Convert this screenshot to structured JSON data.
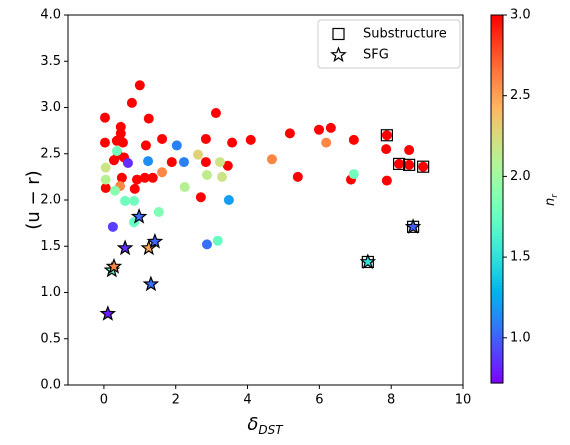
{
  "chart_data": {
    "type": "scatter",
    "xlabel": {
      "text": "δ",
      "sub": "DST"
    },
    "ylabel": "(u − r)",
    "colorbar_label": {
      "text": "n",
      "sub": "r"
    },
    "cmap": "rainbow",
    "clim": [
      0.72,
      3.0
    ],
    "cticks": [
      {
        "value": 1.0,
        "label": "1.0"
      },
      {
        "value": 1.5,
        "label": "1.5"
      },
      {
        "value": 2.0,
        "label": "2.0"
      },
      {
        "value": 2.5,
        "label": "2.5"
      },
      {
        "value": 3.0,
        "label": "3.0"
      }
    ],
    "xlim": [
      -1,
      10
    ],
    "xticks": [
      0,
      2,
      4,
      6,
      8,
      10
    ],
    "ylim": [
      0,
      4
    ],
    "yticks": [
      {
        "value": 0,
        "label": "0.0"
      },
      {
        "value": 0.5,
        "label": "0.5"
      },
      {
        "value": 1,
        "label": "1.0"
      },
      {
        "value": 1.5,
        "label": "1.5"
      },
      {
        "value": 2,
        "label": "2.0"
      },
      {
        "value": 2.5,
        "label": "2.5"
      },
      {
        "value": 3,
        "label": "3.0"
      },
      {
        "value": 3.5,
        "label": "3.5"
      },
      {
        "value": 4,
        "label": "4.0"
      }
    ],
    "legend": "upper right",
    "points": {
      "x": [
        0.03,
        0.03,
        0.05,
        0.28,
        0.39,
        0.45,
        0.47,
        0.47,
        0.36,
        0.53,
        0.5,
        0.56,
        0.78,
        0.86,
        0.92,
        1.0,
        1.14,
        1.17,
        1.25,
        1.36,
        1.62,
        1.89,
        2.84,
        2.84,
        2.7,
        3.12,
        3.45,
        3.57,
        4.09,
        5.18,
        5.4,
        5.99,
        6.32,
        6.88,
        6.96,
        7.88,
        7.86,
        7.88,
        8.22,
        8.5,
        8.5,
        8.89,
        0.45,
        1.62,
        4.68,
        6.19,
        0.05,
        0.05,
        2.62,
        3.23,
        2.87,
        3.29,
        2.25,
        0.36,
        0.59,
        0.84,
        0.84,
        1.53,
        3.17,
        6.96,
        0.31,
        1.23,
        2.03,
        2.23,
        3.48,
        2.87,
        0.25,
        0.67
      ],
      "y": [
        2.89,
        2.62,
        2.13,
        2.43,
        2.49,
        2.65,
        2.72,
        2.79,
        2.64,
        2.62,
        2.24,
        2.46,
        3.05,
        2.12,
        2.22,
        3.24,
        2.24,
        2.59,
        2.88,
        2.24,
        2.66,
        2.41,
        2.66,
        2.41,
        2.03,
        2.94,
        2.37,
        2.62,
        2.65,
        2.72,
        2.25,
        2.76,
        2.78,
        2.22,
        2.65,
        2.7,
        2.55,
        2.21,
        2.39,
        2.54,
        2.38,
        2.36,
        2.15,
        2.3,
        2.44,
        2.62,
        2.35,
        2.22,
        2.49,
        2.41,
        2.27,
        2.25,
        2.14,
        2.53,
        1.99,
        1.99,
        1.76,
        1.87,
        1.56,
        2.28,
        2.1,
        2.42,
        2.59,
        2.41,
        2.0,
        1.52,
        1.71,
        2.4
      ],
      "c": [
        3,
        3,
        3,
        3,
        3,
        3,
        3,
        3,
        3,
        3,
        3,
        3,
        3,
        3,
        3,
        3,
        3,
        3,
        3,
        3,
        3,
        3,
        3,
        3,
        3,
        3,
        3,
        3,
        3,
        3,
        3,
        3,
        3,
        3,
        3,
        3,
        3,
        3,
        3,
        3,
        3,
        3,
        2.6,
        2.6,
        2.6,
        2.6,
        2.2,
        2.1,
        2.3,
        2.2,
        2.15,
        2.2,
        2.1,
        1.8,
        1.8,
        1.8,
        1.75,
        1.85,
        1.75,
        1.8,
        1.9,
        1.15,
        1.1,
        1.1,
        1.2,
        1.05,
        0.9,
        0.85
      ]
    },
    "series": [
      {
        "name": "Substructure",
        "marker": "square",
        "color": "#000000",
        "x": [
          7.88,
          8.22,
          8.5,
          8.89,
          7.35,
          8.61
        ],
        "values": [
          2.7,
          2.39,
          2.38,
          2.36,
          1.33,
          1.71
        ]
      },
      {
        "name": "SFG",
        "marker": "star",
        "color": "#000000",
        "x": [
          0.11,
          0.22,
          0.28,
          0.59,
          0.98,
          1.25,
          1.42,
          1.31,
          7.35,
          8.61
        ],
        "values": [
          0.77,
          1.24,
          1.28,
          1.48,
          1.82,
          1.48,
          1.55,
          1.09,
          1.33,
          1.71
        ],
        "c": [
          0.8,
          1.7,
          2.6,
          0.85,
          1.05,
          2.5,
          1.0,
          1.05,
          1.5,
          1.0
        ]
      }
    ]
  }
}
